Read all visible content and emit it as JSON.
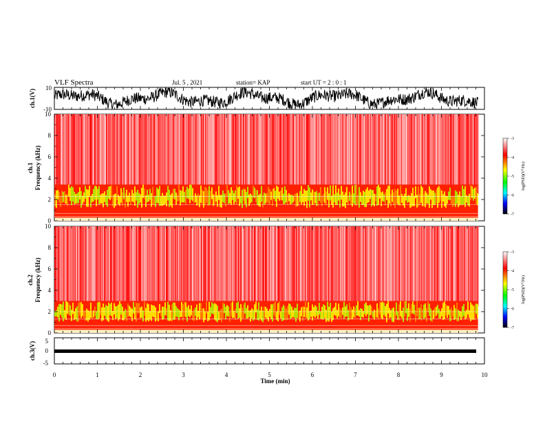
{
  "header": {
    "title": "VLF Spectra",
    "date": "Jul. 5 , 2021",
    "station": "station= KAP",
    "start": "start UT =  2 : 0  : 1"
  },
  "colors": {
    "line": "#000000",
    "spectrum_bg": "#ffffff",
    "spectrum_high": "#ff0000",
    "spectrum_mid": "#ffff00",
    "spectrum_low": "#00ff00",
    "colorbar_stops": [
      "#ffffff",
      "#ff0000",
      "#ffff00",
      "#00ff00",
      "#00ffff",
      "#0000ff",
      "#000000"
    ]
  },
  "chart_data": [
    {
      "type": "line",
      "panel": "ch1-waveform",
      "ylabel": "ch.1(V)",
      "ylim": [
        -10,
        10
      ],
      "yticks": [
        "10",
        "-10"
      ],
      "x_range_min": [
        0,
        9.85
      ],
      "description_values": "noisy waveform with slow oscillation, amplitude roughly -8 to 8 V"
    },
    {
      "type": "heatmap",
      "panel": "ch1-spectrogram",
      "ylabel": "ch.1\nFrequency (kHz)",
      "ylim": [
        0,
        10
      ],
      "yticks": [
        "0",
        "2",
        "4",
        "6",
        "8",
        "10"
      ],
      "x_range_min": [
        0,
        9.85
      ],
      "band_green_khz": [
        1.2,
        3.4
      ],
      "colorbar": {
        "label": "log(PSD)(V²/Hz)",
        "range": [
          -7,
          -3
        ],
        "ticks": [
          "-3",
          "-4",
          "-5",
          "-6",
          "-7"
        ]
      }
    },
    {
      "type": "heatmap",
      "panel": "ch2-spectrogram",
      "ylabel": "ch.2\nFrequency (kHz)",
      "ylim": [
        0,
        10
      ],
      "yticks": [
        "0",
        "2",
        "4",
        "6",
        "8",
        "10"
      ],
      "x_range_min": [
        0,
        9.85
      ],
      "band_green_khz": [
        1.0,
        3.0
      ],
      "colorbar": {
        "label": "log(PSD)(V²/Hz)",
        "range": [
          -7,
          -3
        ],
        "ticks": [
          "-3",
          "-4",
          "-5",
          "-6",
          "-7"
        ]
      }
    },
    {
      "type": "line",
      "panel": "ch3-waveform",
      "ylabel": "ch.3(V)",
      "ylim": [
        -5,
        5
      ],
      "yticks": [
        "5",
        "0",
        "-5"
      ],
      "x_range_min": [
        0,
        9.85
      ],
      "description_values": "thick dense band near -1 V"
    }
  ],
  "xaxis": {
    "label": "Time (min)",
    "range": [
      0,
      10
    ],
    "ticks": [
      "0",
      "1",
      "2",
      "3",
      "4",
      "5",
      "6",
      "7",
      "8",
      "9",
      "10"
    ]
  },
  "panels": {
    "ch1_wave": {
      "ylabel": "ch.1(V)",
      "ytop": "10",
      "ybot": "-10"
    },
    "ch1_spec": {
      "ylabel_ch": "ch.1",
      "ylabel_f": "Frequency (kHz)"
    },
    "ch2_spec": {
      "ylabel_ch": "ch.2",
      "ylabel_f": "Frequency (kHz)"
    },
    "ch3_wave": {
      "ylabel": "ch.3(V)",
      "ytop": "5",
      "ymid": "0",
      "ybot": "-5"
    }
  },
  "colorbar": {
    "label": "log(PSD)(V",
    "label_sup": "2",
    "label_end": "/Hz)",
    "ticks": [
      "-3",
      "-4",
      "-5",
      "-6",
      "-7"
    ]
  }
}
